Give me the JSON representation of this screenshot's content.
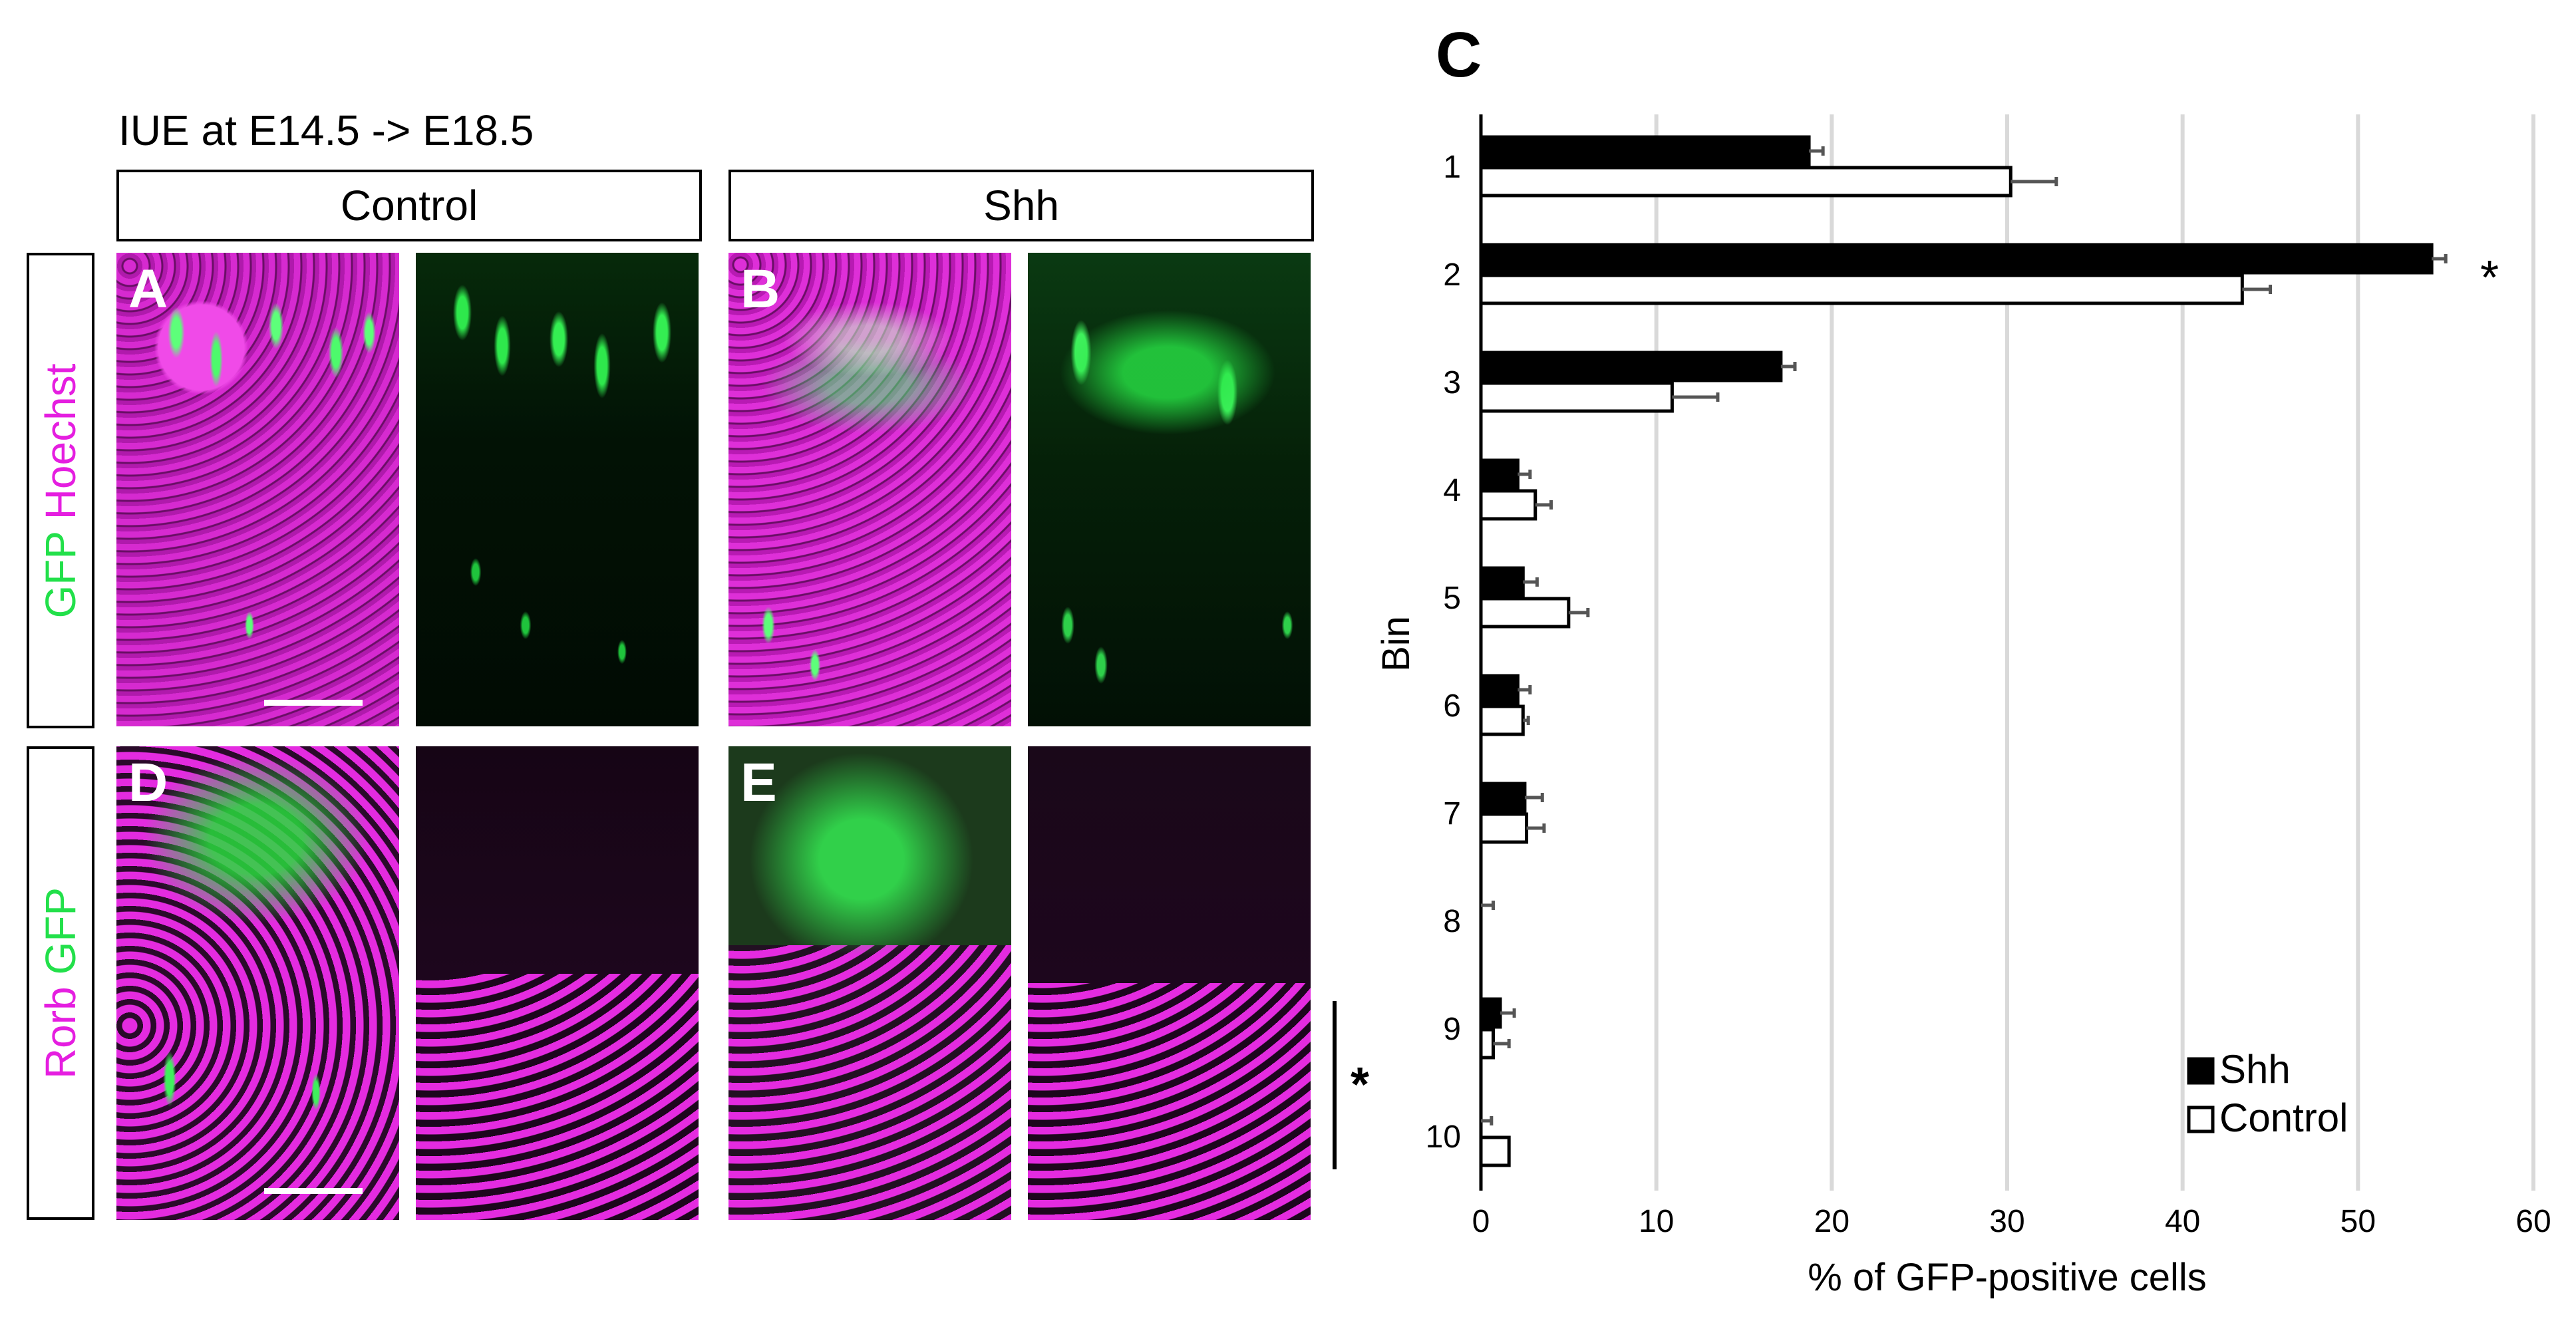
{
  "figure": {
    "experiment_title": "IUE at E14.5 -> E18.5",
    "conditions": [
      "Control",
      "Shh"
    ],
    "row_labels": [
      {
        "parts": [
          {
            "text": "GFP",
            "color": "#22e04a"
          },
          {
            "text": " Hoechst",
            "color": "#e51ee0"
          }
        ]
      },
      {
        "parts": [
          {
            "text": "Rorb",
            "color": "#e51ee0"
          },
          {
            "text": " GFP",
            "color": "#22e04a"
          }
        ]
      }
    ],
    "panel_letters": {
      "a": "A",
      "b": "B",
      "c": "C",
      "d": "D",
      "e": "E"
    },
    "bracket_asterisk": "*"
  },
  "chart_data": {
    "type": "bar",
    "orientation": "horizontal",
    "categories": [
      "1",
      "2",
      "3",
      "4",
      "5",
      "6",
      "7",
      "8",
      "9",
      "10"
    ],
    "series": [
      {
        "name": "Shh",
        "color": "#000000",
        "values": [
          18.7,
          54.2,
          17.1,
          2.1,
          2.4,
          2.1,
          2.5,
          0.0,
          1.1,
          0.0
        ],
        "errors": [
          0.8,
          0.8,
          0.8,
          0.7,
          0.8,
          0.7,
          1.0,
          0.7,
          0.8,
          0.6
        ]
      },
      {
        "name": "Control",
        "color": "#ffffff",
        "values": [
          30.2,
          43.4,
          10.9,
          3.1,
          5.0,
          2.4,
          2.6,
          0.0,
          0.7,
          1.6
        ],
        "errors": [
          2.6,
          1.6,
          2.6,
          0.9,
          1.1,
          0.3,
          1.0,
          0.0,
          0.9,
          0.0
        ]
      }
    ],
    "significance": [
      {
        "category": "2",
        "label": "*"
      }
    ],
    "title": "C",
    "xlabel": "% of GFP-positive cells",
    "ylabel": "Bin",
    "xlim": [
      0,
      60
    ],
    "x_ticks": [
      0,
      10,
      20,
      30,
      40,
      50,
      60
    ],
    "x_tick_labels": [
      "0",
      "10",
      "20",
      "30",
      "40",
      "50",
      "60"
    ],
    "grid": "vertical",
    "legend": {
      "placement": "bottom-right",
      "entries": [
        "Shh",
        "Control"
      ]
    }
  }
}
